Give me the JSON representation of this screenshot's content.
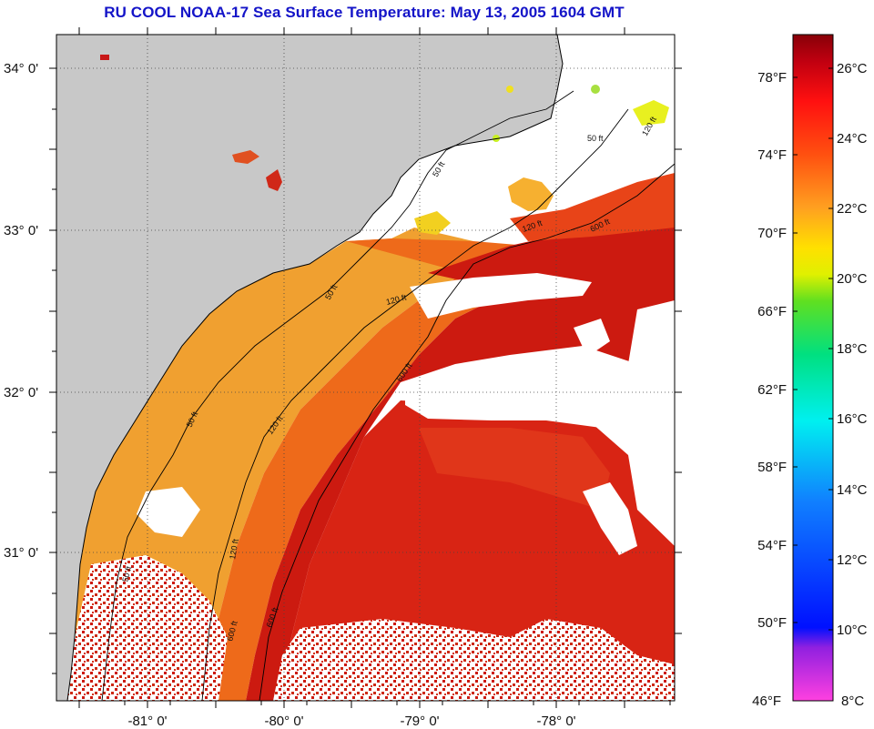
{
  "title": "RU COOL  NOAA-17  Sea Surface Temperature:  May 13, 2005 1604 GMT",
  "map": {
    "lon_labels": [
      "-81° 0'",
      "-80° 0'",
      "-79° 0'",
      "-78° 0'"
    ],
    "lat_labels": [
      "34° 0'",
      "33° 0'",
      "32° 0'",
      "31° 0'"
    ],
    "isobath_labels": [
      "50 ft",
      "120 ft",
      "600 ft",
      "50 ft",
      "120 ft",
      "600 ft",
      "50 ft",
      "120 ft",
      "50 ft",
      "120 ft",
      "600 ft",
      "50 ft",
      "120 ft",
      "600 ft"
    ]
  },
  "colorbar": {
    "fahrenheit_labels": [
      "78°F",
      "74°F",
      "70°F",
      "66°F",
      "62°F",
      "58°F",
      "54°F",
      "50°F",
      "46°F"
    ],
    "celsius_labels": [
      "26°C",
      "24°C",
      "22°C",
      "20°C",
      "18°C",
      "16°C",
      "14°C",
      "12°C",
      "10°C",
      "8°C"
    ]
  },
  "colors": {
    "title": "#1414c8",
    "land": "#c8c8c8",
    "warm": "#cc1a10",
    "mid": "#ee6a1a",
    "cool": "#f0a030"
  }
}
